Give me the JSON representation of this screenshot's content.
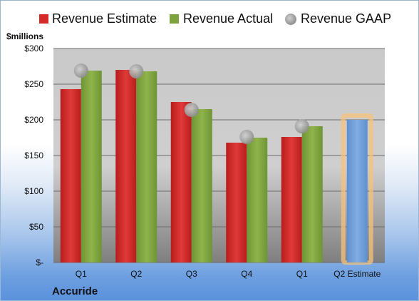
{
  "chart_data": {
    "type": "bar",
    "company": "Accuride",
    "yunit": "$millions",
    "categories": [
      "Q1",
      "Q2",
      "Q3",
      "Q4",
      "Q1",
      "Q2 Estimate"
    ],
    "yticks": [
      "$-",
      "$50",
      "$100",
      "$150",
      "$200",
      "$250",
      "$300"
    ],
    "ylim": [
      0,
      300
    ],
    "grid": true,
    "legend_placement": "top",
    "series": [
      {
        "name": "Revenue Estimate",
        "kind": "bar",
        "color": "#cc2222",
        "values": [
          243,
          270,
          225,
          168,
          176,
          null
        ]
      },
      {
        "name": "Revenue Actual",
        "kind": "bar",
        "color": "#7ea33e",
        "values": [
          269,
          268,
          215,
          175,
          191,
          200
        ]
      },
      {
        "name": "Revenue GAAP",
        "kind": "marker",
        "color": "#a6a6a6",
        "values": [
          269,
          268,
          214,
          176,
          191,
          null
        ]
      }
    ],
    "highlight": {
      "category_index": 5,
      "color": "#6f9fd8",
      "glow": "#f5c27a"
    }
  }
}
